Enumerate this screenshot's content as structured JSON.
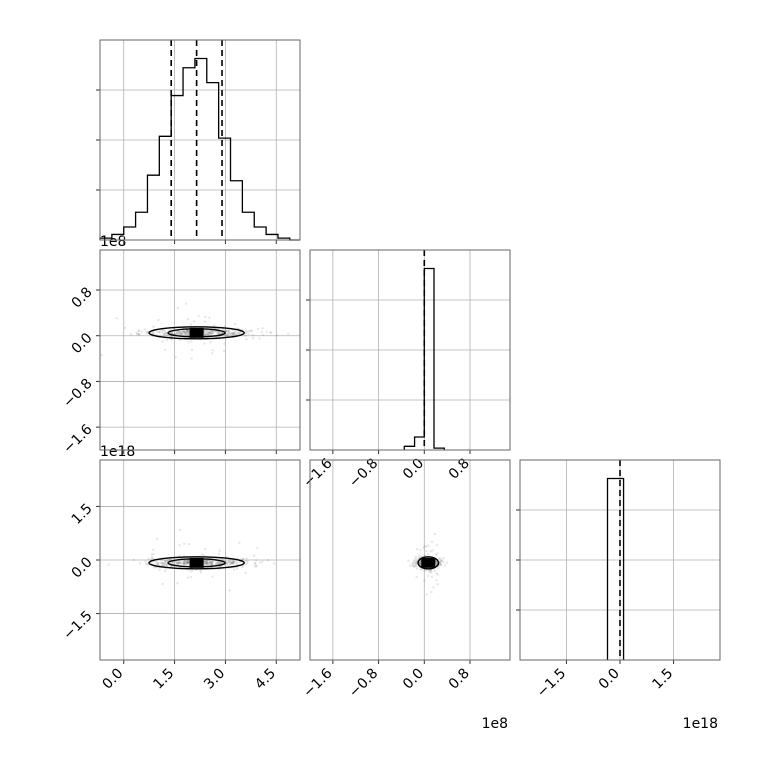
{
  "chart_data": {
    "type": "corner",
    "parameters": 3,
    "offset_labels": {
      "row1_y": "1e8",
      "row2_y": "1e18",
      "col1_x": "1e8",
      "col2_x": "1e18"
    },
    "panels": [
      {
        "id": "hist-0",
        "type": "histogram",
        "x_range": [
          -0.7,
          5.2
        ],
        "y_range": [
          0,
          1.08
        ],
        "bin_edges": [
          -0.7,
          -0.35,
          0.0,
          0.35,
          0.7,
          1.05,
          1.4,
          1.75,
          2.1,
          2.45,
          2.8,
          3.15,
          3.5,
          3.85,
          4.2,
          4.55,
          4.9,
          5.2
        ],
        "counts": [
          0.01,
          0.03,
          0.07,
          0.15,
          0.35,
          0.56,
          0.78,
          0.93,
          0.98,
          0.85,
          0.55,
          0.32,
          0.15,
          0.07,
          0.03,
          0.01,
          0.0
        ],
        "quantiles": [
          1.4,
          2.15,
          2.9
        ],
        "x_ticks": [
          0.0,
          1.5,
          3.0,
          4.5
        ]
      },
      {
        "id": "scatter-1-0",
        "type": "2d-density",
        "x_range": [
          -0.7,
          5.2
        ],
        "y_range": [
          -2.0,
          1.5
        ],
        "x_ticks": [
          0.0,
          1.5,
          3.0,
          4.5
        ],
        "y_ticks": [
          0.8,
          0.0,
          -0.8,
          -1.6
        ],
        "y_tick_labels": [
          "0.8",
          "0.0",
          "−0.8",
          "−1.6"
        ],
        "peak": [
          2.15,
          0.05
        ]
      },
      {
        "id": "hist-1",
        "type": "histogram",
        "x_range": [
          -2.0,
          1.5
        ],
        "y_range": [
          0,
          1.08
        ],
        "bin_edges": [
          -0.35,
          -0.17,
          0.0,
          0.17,
          0.35
        ],
        "counts": [
          0.02,
          0.07,
          0.98,
          0.01
        ],
        "quantiles": [
          0.0
        ],
        "x_ticks": [
          -1.6,
          -0.8,
          0.0,
          0.8
        ],
        "x_tick_labels": [
          "−1.6",
          "−0.8",
          "0.0",
          "0.8"
        ]
      },
      {
        "id": "scatter-2-0",
        "type": "2d-density",
        "x_range": [
          -0.7,
          5.2
        ],
        "y_range": [
          -2.8,
          2.8
        ],
        "x_ticks": [
          0.0,
          1.5,
          3.0,
          4.5
        ],
        "x_tick_labels": [
          "0.0",
          "1.5",
          "3.0",
          "4.5"
        ],
        "y_ticks": [
          1.5,
          0.0,
          -1.5
        ],
        "y_tick_labels": [
          "1.5",
          "0.0",
          "−1.5"
        ],
        "peak": [
          2.15,
          -0.08
        ]
      },
      {
        "id": "scatter-2-1",
        "type": "2d-density",
        "x_range": [
          -2.0,
          1.5
        ],
        "y_range": [
          -2.8,
          2.8
        ],
        "x_ticks": [
          -1.6,
          -0.8,
          0.0,
          0.8
        ],
        "x_tick_labels": [
          "−1.6",
          "−0.8",
          "0.0",
          "0.8"
        ],
        "peak": [
          0.07,
          -0.08
        ]
      },
      {
        "id": "hist-2",
        "type": "histogram",
        "x_range": [
          -2.8,
          2.8
        ],
        "y_range": [
          0,
          1.08
        ],
        "bin_edges": [
          -0.35,
          0.0,
          0.1
        ],
        "counts": [
          0.98,
          0.98
        ],
        "quantiles": [
          0.0
        ],
        "x_ticks": [
          -1.5,
          0.0,
          1.5
        ],
        "x_tick_labels": [
          "−1.5",
          "0.0",
          "1.5"
        ]
      }
    ]
  }
}
